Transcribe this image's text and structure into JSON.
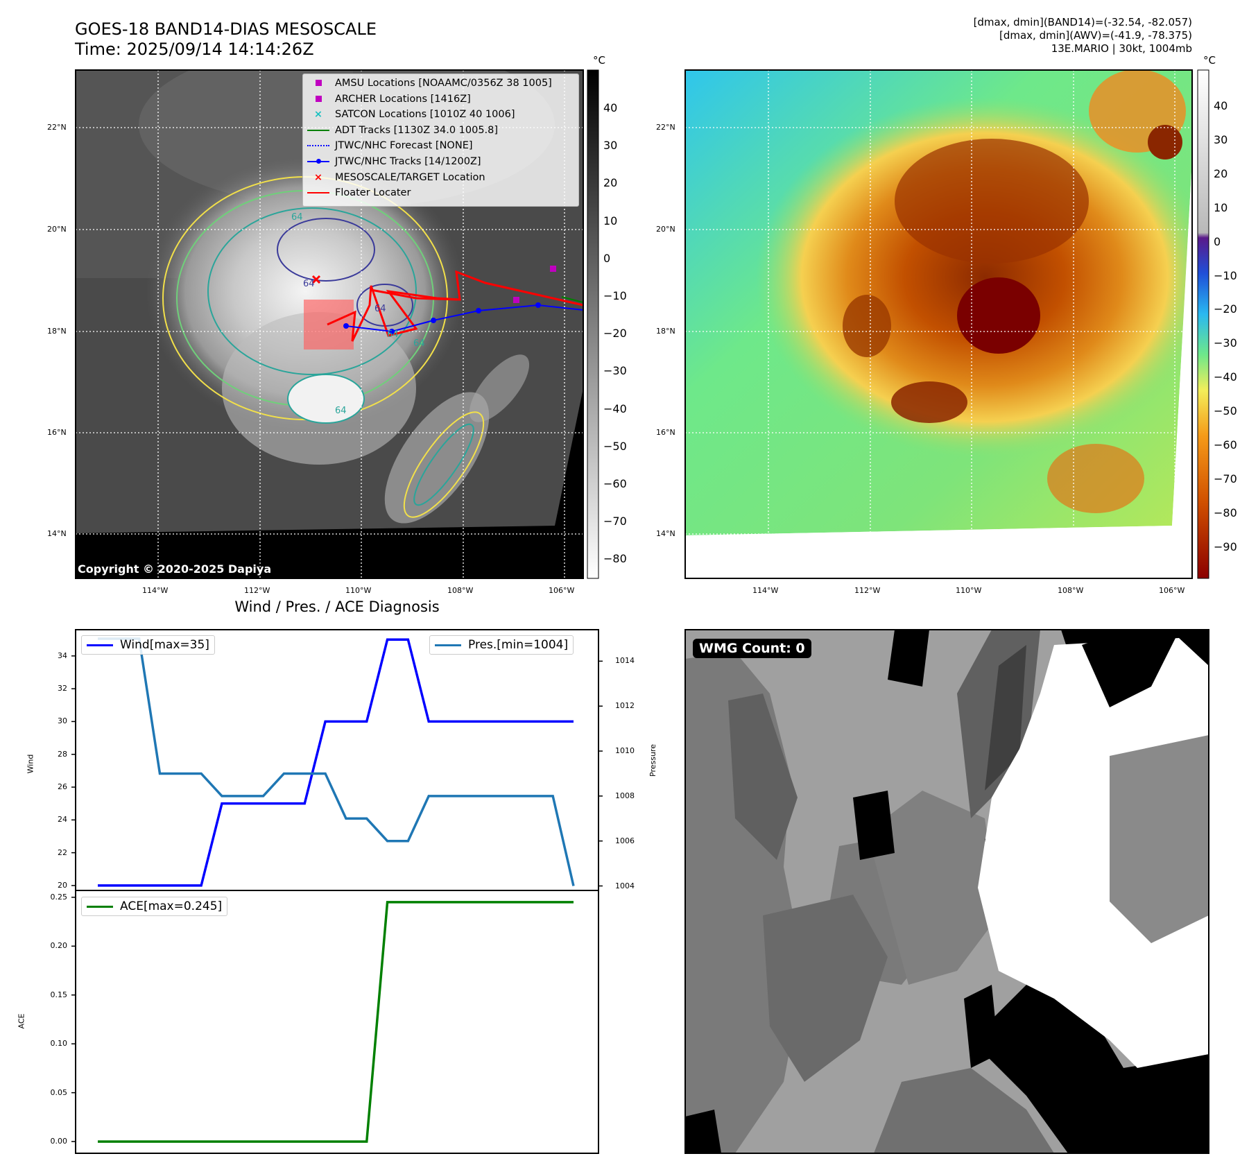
{
  "header": {
    "title_line1": "GOES-18 BAND14-DIAS MESOSCALE",
    "title_line2": "Time: 2025/09/14 14:14:26Z",
    "info_line1": "[dmax, dmin](BAND14)=(-32.54, -82.057)",
    "info_line2": "[dmax, dmin](AWV)=(-41.9, -78.375)",
    "info_line3": "13E.MARIO | 30kt, 1004mb"
  },
  "map_axes": {
    "lat_labels": [
      "22°N",
      "20°N",
      "18°N",
      "16°N",
      "14°N"
    ],
    "lon_labels": [
      "114°W",
      "112°W",
      "110°W",
      "108°W",
      "106°W"
    ]
  },
  "ir_panel": {
    "copyright": "Copyright © 2020-2025 Dapiya",
    "colorbar_unit": "°C",
    "colorbar_ticks": [
      "40",
      "30",
      "20",
      "10",
      "0",
      "−10",
      "−20",
      "−30",
      "−40",
      "−50",
      "−60",
      "−70",
      "−80"
    ],
    "contour_labels": [
      "64",
      "64",
      "64",
      "64",
      "64",
      "64"
    ],
    "legend": [
      {
        "label": "AMSU Locations [NOAAMC/0356Z 38 1005]",
        "marker": "square",
        "color": "#c000c0"
      },
      {
        "label": "ARCHER Locations [1416Z]",
        "marker": "square",
        "color": "#c000c0"
      },
      {
        "label": "SATCON Locations [1010Z 40 1006]",
        "marker": "x",
        "color": "#19c0c0"
      },
      {
        "label": "ADT Tracks [1130Z 34.0 1005.8]",
        "marker": "line",
        "color": "#008000"
      },
      {
        "label": "JTWC/NHC Forecast [NONE]",
        "marker": "dotted",
        "color": "#0000ff"
      },
      {
        "label": "JTWC/NHC Tracks [14/1200Z]",
        "marker": "line-dot",
        "color": "#0000ff"
      },
      {
        "label": "MESOSCALE/TARGET Location",
        "marker": "x",
        "color": "#ff0000"
      },
      {
        "label": "Floater Locater",
        "marker": "line",
        "color": "#ff0000"
      }
    ]
  },
  "wv_panel": {
    "colorbar_unit": "°C",
    "colorbar_ticks": [
      "40",
      "30",
      "20",
      "10",
      "0",
      "−10",
      "−20",
      "−30",
      "−40",
      "−50",
      "−60",
      "−70",
      "−80",
      "−90"
    ]
  },
  "wmg_panel": {
    "badge": "WMG Count: 0"
  },
  "chart_data": [
    {
      "type": "line",
      "title": "Wind / Pres. / ACE Diagnosis",
      "x": [
        0,
        1,
        2,
        3,
        4,
        5,
        6,
        7,
        8,
        9,
        10,
        11,
        12,
        13,
        14,
        15,
        16,
        17,
        18,
        19,
        20,
        21,
        22,
        23
      ],
      "ylabel": "Wind",
      "y2label": "Pressure",
      "ylim": [
        19.7,
        35.6
      ],
      "y2lim": [
        1003.8,
        1015.4
      ],
      "yticks": [
        20,
        22,
        24,
        26,
        28,
        30,
        32,
        34
      ],
      "y2ticks": [
        1004,
        1006,
        1008,
        1010,
        1012,
        1014
      ],
      "series": [
        {
          "name": "Wind[max=35]",
          "axis": "left",
          "color": "#0000ff",
          "values": [
            20,
            20,
            20,
            20,
            20,
            20,
            25,
            25,
            25,
            25,
            25,
            30,
            30,
            30,
            35,
            35,
            30,
            30,
            30,
            30,
            30,
            30,
            30,
            30
          ]
        },
        {
          "name": "Pres.[min=1004]",
          "axis": "right",
          "color": "#1f77b4",
          "values": [
            1015,
            1015,
            1015,
            1009,
            1009,
            1009,
            1008,
            1008,
            1008,
            1009,
            1009,
            1009,
            1007,
            1007,
            1006,
            1006,
            1008,
            1008,
            1008,
            1008,
            1008,
            1008,
            1008,
            1004
          ]
        }
      ]
    },
    {
      "type": "line",
      "ylabel": "ACE",
      "x": [
        0,
        1,
        2,
        3,
        4,
        5,
        6,
        7,
        8,
        9,
        10,
        11,
        12,
        13,
        14,
        15,
        16,
        17,
        18,
        19,
        20,
        21,
        22,
        23
      ],
      "ylim": [
        -0.012,
        0.257
      ],
      "yticks": [
        "0.00",
        "0.05",
        "0.10",
        "0.15",
        "0.20",
        "0.25"
      ],
      "series": [
        {
          "name": "ACE[max=0.245]",
          "color": "#008000",
          "values": [
            0,
            0,
            0,
            0,
            0,
            0,
            0,
            0,
            0,
            0,
            0,
            0,
            0,
            0,
            0.245,
            0.245,
            0.245,
            0.245,
            0.245,
            0.245,
            0.245,
            0.245,
            0.245,
            0.245
          ]
        }
      ]
    }
  ]
}
